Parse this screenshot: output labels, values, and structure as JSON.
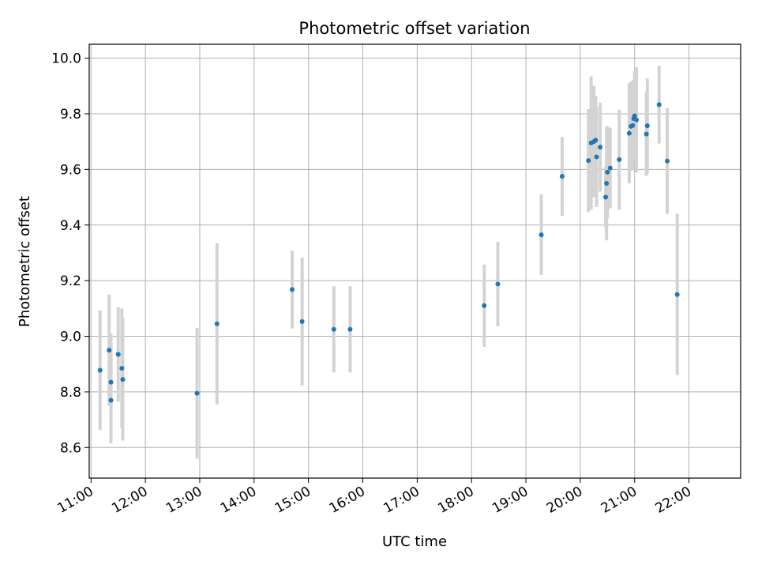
{
  "chart_data": {
    "type": "scatter",
    "title": "Photometric offset variation",
    "xlabel": "UTC time",
    "ylabel": "Photometric offset",
    "x_ticks": [
      "11:00",
      "12:00",
      "13:00",
      "14:00",
      "15:00",
      "16:00",
      "17:00",
      "18:00",
      "19:00",
      "20:00",
      "21:00",
      "22:00"
    ],
    "y_ticks": [
      "8.6",
      "8.8",
      "9.0",
      "9.2",
      "9.4",
      "9.6",
      "9.8",
      "10.0"
    ],
    "xlim": [
      "10:58",
      "22:57"
    ],
    "ylim": [
      8.49,
      10.05
    ],
    "grid": true,
    "colors": {
      "point": "#1f77b4",
      "errorbar": "#d3d3d3",
      "grid": "#b0b0b0"
    },
    "series": [
      {
        "points": [
          {
            "x": "11:10",
            "y": 8.878,
            "err": 0.215
          },
          {
            "x": "11:20",
            "y": 8.95,
            "err": 0.2
          },
          {
            "x": "11:22",
            "y": 8.835,
            "err": 0.175
          },
          {
            "x": "11:22",
            "y": 8.77,
            "err": 0.155
          },
          {
            "x": "11:30",
            "y": 8.935,
            "err": 0.17
          },
          {
            "x": "11:34",
            "y": 8.885,
            "err": 0.215
          },
          {
            "x": "11:35",
            "y": 8.845,
            "err": 0.22
          },
          {
            "x": "12:57",
            "y": 8.795,
            "err": 0.235
          },
          {
            "x": "13:19",
            "y": 9.045,
            "err": 0.29
          },
          {
            "x": "14:42",
            "y": 9.168,
            "err": 0.14
          },
          {
            "x": "14:53",
            "y": 9.053,
            "err": 0.23
          },
          {
            "x": "15:28",
            "y": 9.025,
            "err": 0.155
          },
          {
            "x": "15:46",
            "y": 9.025,
            "err": 0.155
          },
          {
            "x": "18:14",
            "y": 9.11,
            "err": 0.148
          },
          {
            "x": "18:29",
            "y": 9.188,
            "err": 0.152
          },
          {
            "x": "19:17",
            "y": 9.365,
            "err": 0.145
          },
          {
            "x": "19:40",
            "y": 9.575,
            "err": 0.142
          },
          {
            "x": "20:09",
            "y": 9.632,
            "err": 0.185
          },
          {
            "x": "20:12",
            "y": 9.695,
            "err": 0.24
          },
          {
            "x": "20:15",
            "y": 9.7,
            "err": 0.2
          },
          {
            "x": "20:17",
            "y": 9.705,
            "err": 0.16
          },
          {
            "x": "20:18",
            "y": 9.645,
            "err": 0.18
          },
          {
            "x": "20:22",
            "y": 9.68,
            "err": 0.16
          },
          {
            "x": "20:28",
            "y": 9.5,
            "err": 0.11
          },
          {
            "x": "20:29",
            "y": 9.55,
            "err": 0.205
          },
          {
            "x": "20:30",
            "y": 9.59,
            "err": 0.165
          },
          {
            "x": "20:33",
            "y": 9.605,
            "err": 0.145
          },
          {
            "x": "20:43",
            "y": 9.635,
            "err": 0.18
          },
          {
            "x": "20:54",
            "y": 9.73,
            "err": 0.18
          },
          {
            "x": "20:56",
            "y": 9.755,
            "err": 0.16
          },
          {
            "x": "20:58",
            "y": 9.758,
            "err": 0.16
          },
          {
            "x": "20:59",
            "y": 9.783,
            "err": 0.14
          },
          {
            "x": "21:00",
            "y": 9.793,
            "err": 0.16
          },
          {
            "x": "21:02",
            "y": 9.778,
            "err": 0.19
          },
          {
            "x": "21:13",
            "y": 9.727,
            "err": 0.15
          },
          {
            "x": "21:14",
            "y": 9.757,
            "err": 0.17
          },
          {
            "x": "21:27",
            "y": 9.833,
            "err": 0.14
          },
          {
            "x": "21:36",
            "y": 9.63,
            "err": 0.19
          },
          {
            "x": "21:47",
            "y": 9.15,
            "err": 0.29
          }
        ]
      }
    ]
  }
}
